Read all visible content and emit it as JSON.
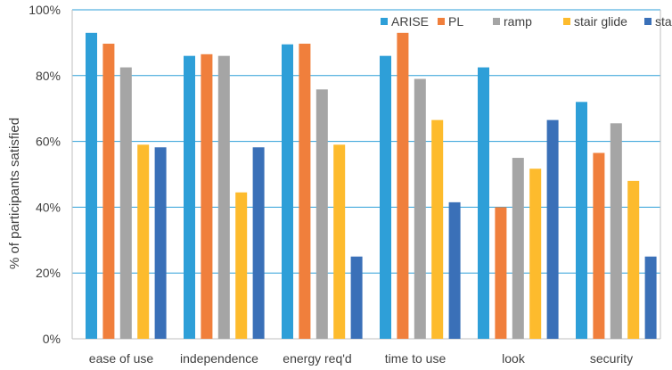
{
  "chart_data": {
    "type": "bar",
    "title": "",
    "xlabel": "",
    "ylabel": "% of participants satisfied",
    "ylim": [
      0,
      100
    ],
    "yticks": [
      0,
      20,
      40,
      60,
      80,
      100
    ],
    "ytick_suffix": "%",
    "grid": true,
    "legend_position": "top-right",
    "categories": [
      "ease of use",
      "independence",
      "energy req'd",
      "time to use",
      "look",
      "security"
    ],
    "series": [
      {
        "name": "ARISE",
        "color": "#2E9FD8",
        "values": [
          93,
          86,
          89.5,
          86,
          82.5,
          72
        ]
      },
      {
        "name": "PL",
        "color": "#F07F3C",
        "values": [
          89.7,
          86.5,
          89.7,
          93,
          40,
          56.5
        ]
      },
      {
        "name": "ramp",
        "color": "#A5A5A5",
        "values": [
          82.5,
          86,
          75.8,
          79,
          55,
          65.5
        ]
      },
      {
        "name": "stair glide",
        "color": "#FDBB2D",
        "values": [
          59,
          44.5,
          59,
          66.5,
          51.7,
          48
        ]
      },
      {
        "name": "stairs",
        "color": "#3A70B8",
        "values": [
          58.2,
          58.2,
          25,
          41.5,
          66.5,
          25
        ]
      }
    ]
  }
}
